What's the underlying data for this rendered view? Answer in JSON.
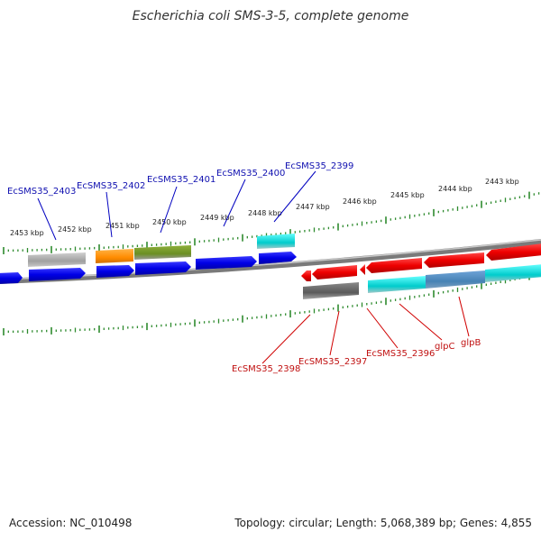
{
  "title": "Escherichia coli SMS-3-5, complete genome",
  "footer": {
    "accession": "Accession: NC_010498",
    "summary": "Topology: circular; Length: 5,068,389 bp; Genes: 4,855"
  },
  "ruler": {
    "tick_labels": [
      "2453 kbp",
      "2452 kbp",
      "2451 kbp",
      "2450 kbp",
      "2449 kbp",
      "2448 kbp",
      "2447 kbp",
      "2446 kbp",
      "2445 kbp",
      "2444 kbp",
      "2443 kbp"
    ],
    "tick_color": "#2e8b2e"
  },
  "genes_forward": [
    {
      "name": "EcSMS35_2403",
      "color": "#0000e0"
    },
    {
      "name": "EcSMS35_2402",
      "color": "#0000e0"
    },
    {
      "name": "EcSMS35_2401",
      "color": "#0000e0"
    },
    {
      "name": "EcSMS35_2400",
      "color": "#0000e0"
    },
    {
      "name": "EcSMS35_2399",
      "color": "#0000e0"
    }
  ],
  "genes_reverse": [
    {
      "name": "EcSMS35_2398",
      "color": "#e00000"
    },
    {
      "name": "EcSMS35_2397",
      "color": "#e00000"
    },
    {
      "name": "EcSMS35_2396",
      "color": "#e00000"
    },
    {
      "name": "glpC",
      "color": "#e00000"
    },
    {
      "name": "glpB",
      "color": "#e00000"
    }
  ],
  "colors": {
    "forward_label": "#1010b0",
    "reverse_label": "#c01010",
    "backbone": "#777777",
    "category_orange": "#ff8c00",
    "category_olive": "#6b8e23",
    "category_cyan": "#00cccc",
    "category_gray": "#a0a0a0",
    "category_dark_gray": "#606060",
    "category_steel": "#4682b4"
  }
}
